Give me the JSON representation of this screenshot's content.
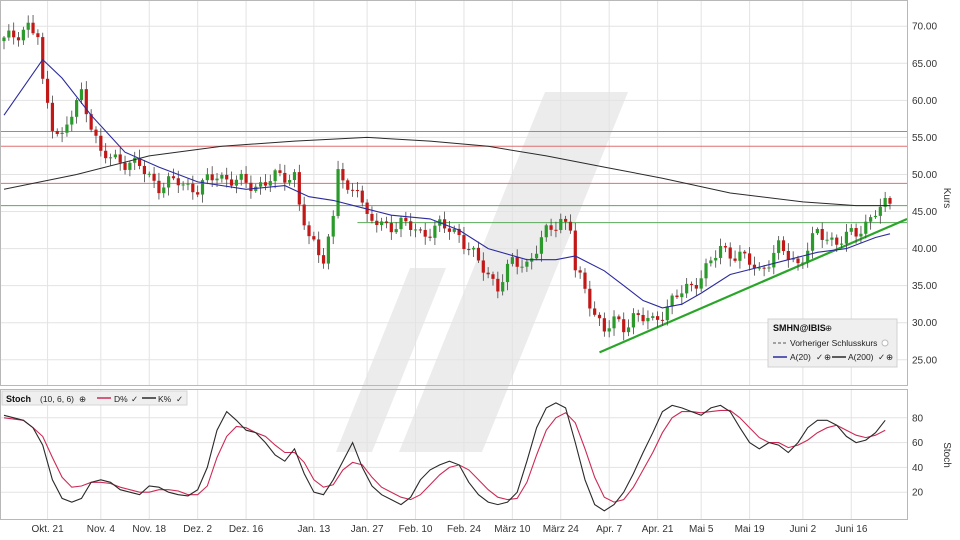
{
  "chart_data": [
    {
      "type": "candlestick",
      "panel": "main",
      "ylabel": "Kurs",
      "ylim": [
        22,
        73
      ],
      "yticks": [
        "25.00",
        "30.00",
        "35.00",
        "40.00",
        "45.00",
        "50.00",
        "55.00",
        "60.00",
        "65.00",
        "70.00"
      ],
      "ytick_values": [
        25,
        30,
        35,
        40,
        45,
        50,
        55,
        60,
        65,
        70
      ],
      "x_count": 184,
      "xtick_labels": [
        "Okt. 21",
        "Nov. 4",
        "Nov. 18",
        "Dez. 2",
        "Dez. 16",
        "Jan. 13",
        "Jan. 27",
        "Feb. 10",
        "Feb. 24",
        "März 10",
        "März 24",
        "Apr. 7",
        "Apr. 21",
        "Mai 5",
        "Mai 19",
        "Juni 2",
        "Juni 16"
      ],
      "xtick_index": [
        9,
        20,
        30,
        40,
        50,
        64,
        75,
        85,
        95,
        105,
        115,
        125,
        135,
        144,
        154,
        165,
        175
      ],
      "anchors": [
        [
          0,
          68
        ],
        [
          5,
          70
        ],
        [
          7,
          68.5
        ],
        [
          8,
          62
        ],
        [
          10,
          57
        ],
        [
          12,
          55
        ],
        [
          16,
          61
        ],
        [
          18,
          57
        ],
        [
          20,
          52.5
        ],
        [
          24,
          52
        ],
        [
          28,
          51
        ],
        [
          32,
          48.5
        ],
        [
          36,
          49
        ],
        [
          40,
          48
        ],
        [
          44,
          50
        ],
        [
          48,
          49
        ],
        [
          52,
          48.5
        ],
        [
          56,
          49.5
        ],
        [
          60,
          50
        ],
        [
          61,
          46
        ],
        [
          63,
          41
        ],
        [
          66,
          39
        ],
        [
          68,
          44
        ],
        [
          69,
          51
        ],
        [
          71,
          47
        ],
        [
          73,
          49
        ],
        [
          75,
          44
        ],
        [
          78,
          43
        ],
        [
          82,
          43.5
        ],
        [
          86,
          42
        ],
        [
          90,
          43
        ],
        [
          94,
          42
        ],
        [
          98,
          38
        ],
        [
          102,
          35
        ],
        [
          105,
          38
        ],
        [
          108,
          38
        ],
        [
          112,
          42
        ],
        [
          115,
          44
        ],
        [
          117,
          43
        ],
        [
          118,
          37
        ],
        [
          122,
          31.5
        ],
        [
          124,
          29
        ],
        [
          126,
          30
        ],
        [
          128,
          29.5
        ],
        [
          130,
          31
        ],
        [
          134,
          30
        ],
        [
          138,
          33
        ],
        [
          142,
          35
        ],
        [
          146,
          38
        ],
        [
          148,
          40
        ],
        [
          152,
          39
        ],
        [
          156,
          37
        ],
        [
          160,
          40
        ],
        [
          164,
          38
        ],
        [
          168,
          42
        ],
        [
          172,
          41
        ],
        [
          176,
          42
        ],
        [
          180,
          45
        ],
        [
          183,
          46
        ]
      ],
      "ma20_anchors": [
        [
          0,
          58
        ],
        [
          8,
          65.5
        ],
        [
          12,
          63
        ],
        [
          18,
          58
        ],
        [
          25,
          53
        ],
        [
          32,
          51
        ],
        [
          40,
          49
        ],
        [
          50,
          48
        ],
        [
          58,
          48.5
        ],
        [
          63,
          47
        ],
        [
          68,
          46.5
        ],
        [
          74,
          45.5
        ],
        [
          80,
          44.5
        ],
        [
          88,
          44
        ],
        [
          94,
          42.5
        ],
        [
          100,
          40
        ],
        [
          108,
          38.5
        ],
        [
          114,
          38.5
        ],
        [
          118,
          39
        ],
        [
          124,
          37
        ],
        [
          128,
          35
        ],
        [
          132,
          33
        ],
        [
          136,
          32
        ],
        [
          140,
          32.5
        ],
        [
          144,
          34
        ],
        [
          150,
          36.5
        ],
        [
          156,
          37.5
        ],
        [
          162,
          38.5
        ],
        [
          168,
          39.5
        ],
        [
          174,
          40
        ],
        [
          180,
          41.5
        ],
        [
          183,
          42
        ]
      ],
      "ma200_anchors": [
        [
          0,
          48
        ],
        [
          15,
          50
        ],
        [
          30,
          52.5
        ],
        [
          45,
          53.8
        ],
        [
          60,
          54.5
        ],
        [
          75,
          55
        ],
        [
          88,
          54.5
        ],
        [
          100,
          53.8
        ],
        [
          112,
          52.5
        ],
        [
          124,
          51
        ],
        [
          136,
          49.5
        ],
        [
          150,
          47.5
        ],
        [
          165,
          46.3
        ],
        [
          176,
          45.8
        ],
        [
          183,
          45.8
        ]
      ],
      "resistance_lines": [
        55.8,
        53.8,
        48.8
      ],
      "support_lines": [
        45.8,
        43.5
      ],
      "support_line_start_index": 73,
      "trendline": {
        "x0": 123,
        "y0": 26,
        "x1": 183,
        "y1": 43
      },
      "legend": {
        "title": "SMHN@IBIS",
        "prev_close": "Vorheriger Schlusskurs",
        "ma20": "A(20)",
        "ma200": "A(200)"
      },
      "colors": {
        "up": "#2a9a2a",
        "down": "#c21818",
        "ma20": "#2b2b9e",
        "ma200": "#2a2a2a",
        "resistance": "#e07070",
        "support": "#5aaa5a",
        "trend": "#2aa52a"
      }
    },
    {
      "type": "line",
      "panel": "stochastic",
      "ylabel": "Stoch",
      "ylim": [
        0,
        100
      ],
      "yticks": [
        "20",
        "40",
        "60",
        "80"
      ],
      "ytick_values": [
        20,
        40,
        60,
        80
      ],
      "legend": {
        "name": "Stoch",
        "params": "(10, 6, 6)",
        "d_label": "D%",
        "k_label": "K%"
      },
      "k_anchors": [
        [
          0,
          82
        ],
        [
          4,
          78
        ],
        [
          6,
          72
        ],
        [
          8,
          58
        ],
        [
          10,
          30
        ],
        [
          12,
          15
        ],
        [
          14,
          12
        ],
        [
          16,
          15
        ],
        [
          18,
          28
        ],
        [
          20,
          30
        ],
        [
          22,
          28
        ],
        [
          24,
          22
        ],
        [
          26,
          20
        ],
        [
          28,
          18
        ],
        [
          30,
          25
        ],
        [
          32,
          24
        ],
        [
          34,
          20
        ],
        [
          36,
          18
        ],
        [
          38,
          17
        ],
        [
          40,
          22
        ],
        [
          42,
          40
        ],
        [
          44,
          70
        ],
        [
          46,
          85
        ],
        [
          48,
          78
        ],
        [
          50,
          70
        ],
        [
          52,
          68
        ],
        [
          54,
          60
        ],
        [
          56,
          50
        ],
        [
          58,
          45
        ],
        [
          60,
          55
        ],
        [
          62,
          35
        ],
        [
          64,
          20
        ],
        [
          66,
          18
        ],
        [
          68,
          30
        ],
        [
          70,
          45
        ],
        [
          72,
          60
        ],
        [
          74,
          40
        ],
        [
          76,
          25
        ],
        [
          78,
          18
        ],
        [
          80,
          14
        ],
        [
          82,
          10
        ],
        [
          84,
          16
        ],
        [
          86,
          30
        ],
        [
          88,
          38
        ],
        [
          90,
          42
        ],
        [
          92,
          45
        ],
        [
          94,
          42
        ],
        [
          96,
          28
        ],
        [
          98,
          18
        ],
        [
          100,
          12
        ],
        [
          102,
          10
        ],
        [
          104,
          12
        ],
        [
          106,
          20
        ],
        [
          108,
          45
        ],
        [
          110,
          72
        ],
        [
          112,
          88
        ],
        [
          114,
          92
        ],
        [
          116,
          88
        ],
        [
          118,
          60
        ],
        [
          120,
          30
        ],
        [
          122,
          10
        ],
        [
          124,
          5
        ],
        [
          126,
          10
        ],
        [
          128,
          20
        ],
        [
          130,
          35
        ],
        [
          132,
          52
        ],
        [
          134,
          68
        ],
        [
          136,
          85
        ],
        [
          138,
          90
        ],
        [
          140,
          88
        ],
        [
          142,
          85
        ],
        [
          144,
          82
        ],
        [
          146,
          88
        ],
        [
          148,
          90
        ],
        [
          150,
          85
        ],
        [
          152,
          72
        ],
        [
          154,
          60
        ],
        [
          156,
          55
        ],
        [
          158,
          60
        ],
        [
          160,
          58
        ],
        [
          162,
          52
        ],
        [
          164,
          60
        ],
        [
          166,
          72
        ],
        [
          168,
          78
        ],
        [
          170,
          78
        ],
        [
          172,
          74
        ],
        [
          174,
          65
        ],
        [
          176,
          60
        ],
        [
          178,
          62
        ],
        [
          180,
          68
        ],
        [
          182,
          78
        ]
      ],
      "d_anchors": [
        [
          0,
          80
        ],
        [
          4,
          78
        ],
        [
          6,
          72
        ],
        [
          8,
          65
        ],
        [
          10,
          48
        ],
        [
          12,
          32
        ],
        [
          14,
          24
        ],
        [
          16,
          25
        ],
        [
          18,
          28
        ],
        [
          20,
          28
        ],
        [
          22,
          27
        ],
        [
          24,
          24
        ],
        [
          26,
          22
        ],
        [
          28,
          20
        ],
        [
          30,
          20
        ],
        [
          32,
          22
        ],
        [
          34,
          22
        ],
        [
          36,
          21
        ],
        [
          38,
          18
        ],
        [
          40,
          18
        ],
        [
          42,
          25
        ],
        [
          44,
          48
        ],
        [
          46,
          65
        ],
        [
          48,
          73
        ],
        [
          50,
          72
        ],
        [
          52,
          68
        ],
        [
          54,
          65
        ],
        [
          56,
          58
        ],
        [
          58,
          52
        ],
        [
          60,
          52
        ],
        [
          62,
          44
        ],
        [
          64,
          30
        ],
        [
          66,
          24
        ],
        [
          68,
          26
        ],
        [
          70,
          38
        ],
        [
          72,
          44
        ],
        [
          74,
          42
        ],
        [
          76,
          32
        ],
        [
          78,
          24
        ],
        [
          80,
          20
        ],
        [
          82,
          16
        ],
        [
          84,
          14
        ],
        [
          86,
          18
        ],
        [
          88,
          26
        ],
        [
          90,
          34
        ],
        [
          92,
          40
        ],
        [
          94,
          42
        ],
        [
          96,
          38
        ],
        [
          98,
          30
        ],
        [
          100,
          22
        ],
        [
          102,
          16
        ],
        [
          104,
          14
        ],
        [
          106,
          15
        ],
        [
          108,
          28
        ],
        [
          110,
          50
        ],
        [
          112,
          70
        ],
        [
          114,
          80
        ],
        [
          116,
          84
        ],
        [
          118,
          76
        ],
        [
          120,
          55
        ],
        [
          122,
          32
        ],
        [
          124,
          16
        ],
        [
          126,
          12
        ],
        [
          128,
          14
        ],
        [
          130,
          24
        ],
        [
          132,
          38
        ],
        [
          134,
          52
        ],
        [
          136,
          68
        ],
        [
          138,
          80
        ],
        [
          140,
          85
        ],
        [
          142,
          85
        ],
        [
          144,
          84
        ],
        [
          146,
          85
        ],
        [
          148,
          86
        ],
        [
          150,
          86
        ],
        [
          152,
          80
        ],
        [
          154,
          72
        ],
        [
          156,
          64
        ],
        [
          158,
          60
        ],
        [
          160,
          60
        ],
        [
          162,
          56
        ],
        [
          164,
          58
        ],
        [
          166,
          62
        ],
        [
          168,
          68
        ],
        [
          170,
          72
        ],
        [
          172,
          74
        ],
        [
          174,
          70
        ],
        [
          176,
          66
        ],
        [
          178,
          64
        ],
        [
          180,
          66
        ],
        [
          182,
          70
        ]
      ],
      "colors": {
        "k": "#2a2a2a",
        "d": "#cc2a55"
      }
    }
  ]
}
